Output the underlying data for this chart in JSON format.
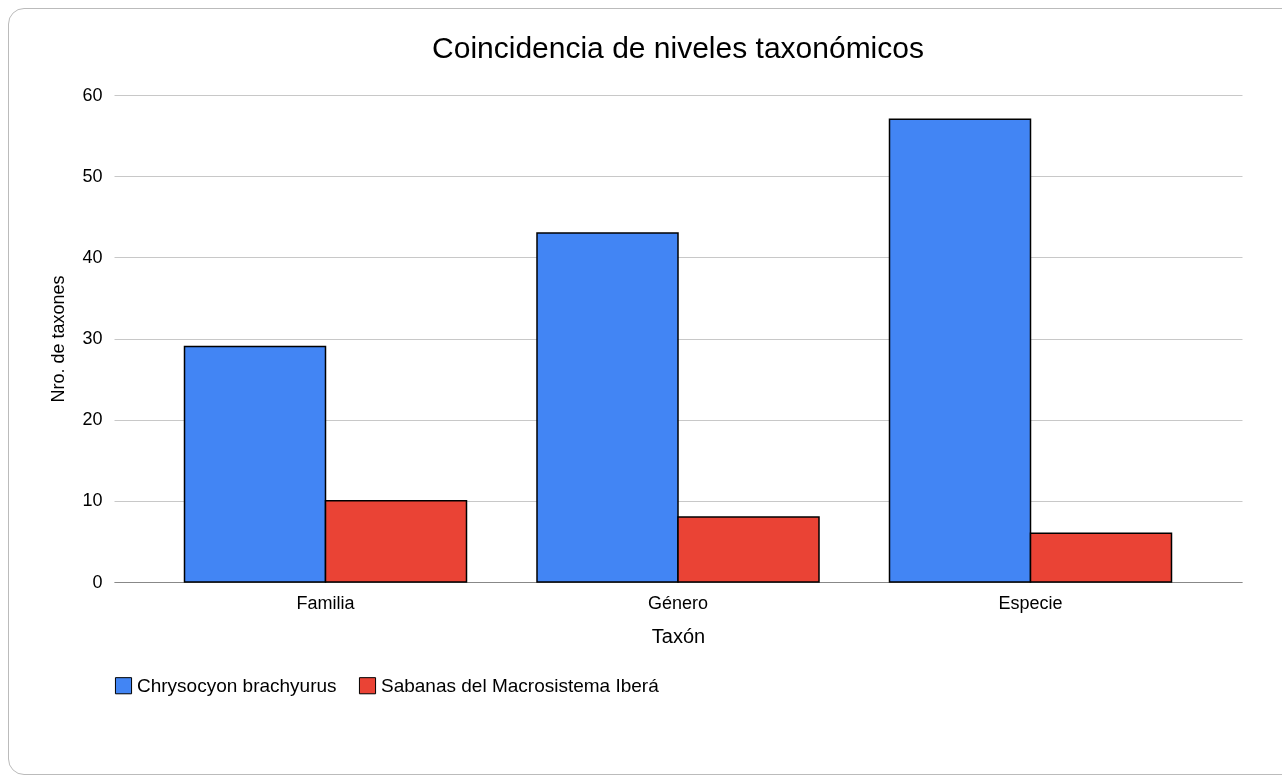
{
  "chart_data": {
    "type": "bar",
    "title": "Coincidencia de niveles taxonómicos",
    "xlabel": "Taxón",
    "ylabel": "Nro. de taxones",
    "categories": [
      "Familia",
      "Género",
      "Especie"
    ],
    "series": [
      {
        "name": "Chrysocyon brachyurus",
        "color": "#4285f4",
        "values": [
          29,
          43,
          57
        ]
      },
      {
        "name": "Sabanas del Macrosistema Iberá",
        "color": "#ea4335",
        "values": [
          10,
          8,
          6
        ]
      }
    ],
    "ylim": [
      0,
      60
    ],
    "yticks": [
      0,
      10,
      20,
      30,
      40,
      50,
      60
    ],
    "grid": "y",
    "legend": "bottom"
  }
}
